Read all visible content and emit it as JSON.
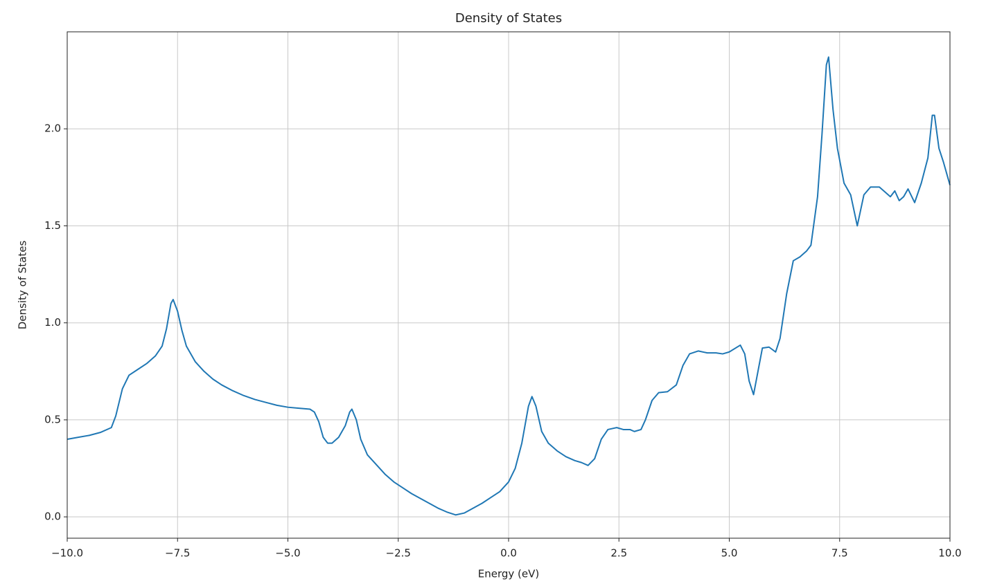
{
  "chart_data": {
    "type": "line",
    "title": "Density of States",
    "xlabel": "Energy (eV)",
    "ylabel": "Density of States",
    "x": [
      -10,
      -9.75,
      -9.5,
      -9.25,
      -9.0,
      -8.9,
      -8.75,
      -8.6,
      -8.4,
      -8.2,
      -8.0,
      -7.85,
      -7.75,
      -7.65,
      -7.6,
      -7.5,
      -7.4,
      -7.3,
      -7.1,
      -6.9,
      -6.7,
      -6.5,
      -6.25,
      -6.0,
      -5.75,
      -5.5,
      -5.25,
      -5.0,
      -4.75,
      -4.5,
      -4.4,
      -4.3,
      -4.2,
      -4.1,
      -4.0,
      -3.85,
      -3.7,
      -3.6,
      -3.55,
      -3.45,
      -3.35,
      -3.2,
      -3.0,
      -2.8,
      -2.6,
      -2.4,
      -2.2,
      -2.0,
      -1.8,
      -1.6,
      -1.4,
      -1.2,
      -1.0,
      -0.8,
      -0.6,
      -0.4,
      -0.2,
      0.0,
      0.15,
      0.3,
      0.45,
      0.53,
      0.62,
      0.75,
      0.9,
      1.1,
      1.3,
      1.5,
      1.65,
      1.8,
      1.95,
      2.1,
      2.25,
      2.45,
      2.6,
      2.75,
      2.85,
      3.0,
      3.1,
      3.25,
      3.4,
      3.6,
      3.8,
      3.95,
      4.1,
      4.3,
      4.5,
      4.7,
      4.85,
      5.0,
      5.25,
      5.35,
      5.45,
      5.55,
      5.65,
      5.75,
      5.9,
      6.05,
      6.15,
      6.3,
      6.45,
      6.6,
      6.75,
      6.85,
      7.0,
      7.1,
      7.2,
      7.25,
      7.35,
      7.45,
      7.6,
      7.75,
      7.9,
      8.05,
      8.2,
      8.4,
      8.55,
      8.65,
      8.75,
      8.85,
      8.95,
      9.05,
      9.2,
      9.35,
      9.5,
      9.6,
      9.65,
      9.75,
      9.85,
      10.0
    ],
    "series": [
      {
        "name": "Density of States",
        "color": "#1f77b4",
        "values": [
          0.4,
          0.41,
          0.42,
          0.435,
          0.46,
          0.52,
          0.66,
          0.73,
          0.76,
          0.79,
          0.83,
          0.88,
          0.97,
          1.1,
          1.12,
          1.06,
          0.96,
          0.88,
          0.8,
          0.75,
          0.71,
          0.68,
          0.65,
          0.625,
          0.605,
          0.59,
          0.575,
          0.565,
          0.56,
          0.555,
          0.54,
          0.49,
          0.41,
          0.38,
          0.38,
          0.41,
          0.47,
          0.54,
          0.555,
          0.5,
          0.4,
          0.32,
          0.27,
          0.22,
          0.18,
          0.15,
          0.12,
          0.095,
          0.07,
          0.045,
          0.025,
          0.01,
          0.02,
          0.045,
          0.07,
          0.1,
          0.13,
          0.18,
          0.25,
          0.38,
          0.57,
          0.62,
          0.57,
          0.44,
          0.38,
          0.34,
          0.31,
          0.29,
          0.28,
          0.265,
          0.3,
          0.4,
          0.45,
          0.46,
          0.45,
          0.45,
          0.44,
          0.45,
          0.5,
          0.6,
          0.64,
          0.645,
          0.68,
          0.78,
          0.84,
          0.855,
          0.845,
          0.845,
          0.84,
          0.85,
          0.885,
          0.84,
          0.7,
          0.63,
          0.75,
          0.87,
          0.875,
          0.85,
          0.92,
          1.15,
          1.32,
          1.34,
          1.37,
          1.4,
          1.65,
          1.97,
          2.33,
          2.37,
          2.1,
          1.9,
          1.72,
          1.66,
          1.5,
          1.66,
          1.7,
          1.7,
          1.67,
          1.65,
          1.68,
          1.63,
          1.65,
          1.69,
          1.62,
          1.72,
          1.85,
          2.07,
          2.07,
          1.9,
          1.83,
          1.71
        ]
      }
    ],
    "xlim": [
      -10,
      10
    ],
    "ylim": [
      -0.11,
      2.5
    ],
    "xticks": [
      {
        "value": -10,
        "label": "−10.0"
      },
      {
        "value": -7.5,
        "label": "−7.5"
      },
      {
        "value": -5,
        "label": "−5.0"
      },
      {
        "value": -2.5,
        "label": "−2.5"
      },
      {
        "value": 0,
        "label": "0.0"
      },
      {
        "value": 2.5,
        "label": "2.5"
      },
      {
        "value": 5,
        "label": "5.0"
      },
      {
        "value": 7.5,
        "label": "7.5"
      },
      {
        "value": 10,
        "label": "10.0"
      }
    ],
    "yticks": [
      {
        "value": 0,
        "label": "0.0"
      },
      {
        "value": 0.5,
        "label": "0.5"
      },
      {
        "value": 1,
        "label": "1.0"
      },
      {
        "value": 1.5,
        "label": "1.5"
      },
      {
        "value": 2,
        "label": "2.0"
      }
    ],
    "grid": true
  }
}
